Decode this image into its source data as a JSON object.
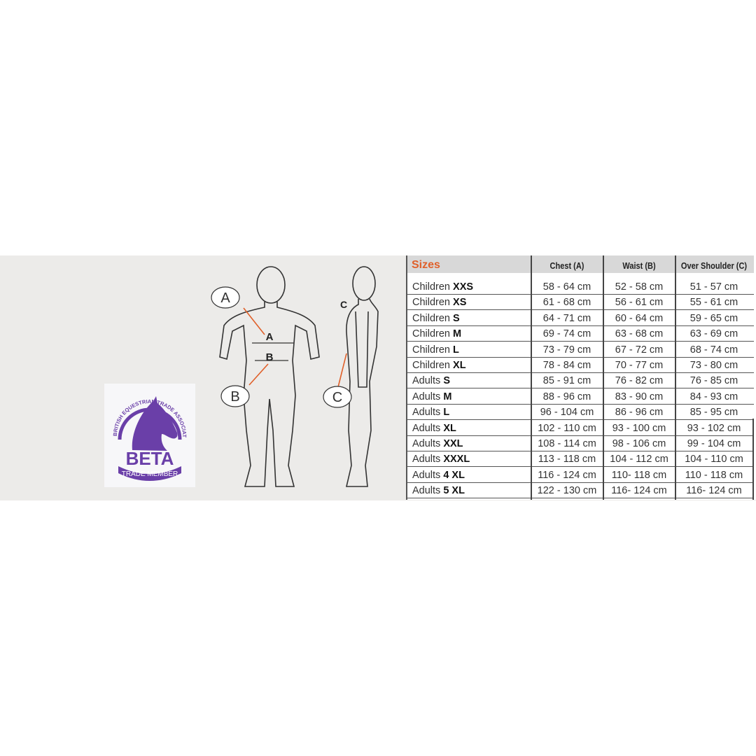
{
  "table": {
    "headers": {
      "sizes": "Sizes",
      "chest": "Chest (A)",
      "waist": "Waist (B)",
      "shoulder": "Over Shoulder (C)"
    },
    "rows": [
      {
        "group": "Children",
        "size": "XXS",
        "chest": "58 - 64 cm",
        "waist": "52 - 58 cm",
        "shoulder": "51 - 57 cm"
      },
      {
        "group": "Children",
        "size": "XS",
        "chest": "61 - 68 cm",
        "waist": "56 - 61 cm",
        "shoulder": "55 - 61 cm"
      },
      {
        "group": "Children",
        "size": "S",
        "chest": "64 - 71 cm",
        "waist": "60 - 64 cm",
        "shoulder": "59 - 65 cm"
      },
      {
        "group": "Children",
        "size": "M",
        "chest": "69 - 74 cm",
        "waist": "63 - 68 cm",
        "shoulder": "63 - 69 cm"
      },
      {
        "group": "Children",
        "size": "L",
        "chest": "73 - 79 cm",
        "waist": "67 - 72 cm",
        "shoulder": "68 - 74 cm"
      },
      {
        "group": "Children",
        "size": "XL",
        "chest": "78 - 84 cm",
        "waist": "70 - 77 cm",
        "shoulder": "73 - 80 cm"
      },
      {
        "group": "Adults",
        "size": "S",
        "chest": "85 - 91 cm",
        "waist": "76 - 82 cm",
        "shoulder": "76 - 85 cm"
      },
      {
        "group": "Adults",
        "size": "M",
        "chest": "88 - 96 cm",
        "waist": "83 - 90 cm",
        "shoulder": "84 - 93 cm"
      },
      {
        "group": "Adults",
        "size": "L",
        "chest": "96 - 104 cm",
        "waist": "86 - 96 cm",
        "shoulder": "85 - 95 cm"
      },
      {
        "group": "Adults",
        "size": "XL",
        "chest": "102 - 110 cm",
        "waist": "93 - 100 cm",
        "shoulder": "93 - 102 cm"
      },
      {
        "group": "Adults",
        "size": "XXL",
        "chest": "108 - 114 cm",
        "waist": "98 - 106 cm",
        "shoulder": "99 - 104 cm"
      },
      {
        "group": "Adults",
        "size": "XXXL",
        "chest": "113 - 118 cm",
        "waist": "104 - 112 cm",
        "shoulder": "104 - 110 cm"
      },
      {
        "group": "Adults",
        "size": "4 XL",
        "chest": "116 - 124 cm",
        "waist": "110- 118 cm",
        "shoulder": "110 - 118 cm"
      },
      {
        "group": "Adults",
        "size": "5 XL",
        "chest": "122 - 130 cm",
        "waist": "116- 124 cm",
        "shoulder": "116- 124 cm"
      }
    ]
  },
  "diagram": {
    "labels": {
      "a": "A",
      "b": "B",
      "c": "C"
    },
    "line_color": "#e0602a"
  },
  "logo": {
    "ring_text": "BRITISH EQUESTRIAN TRADE ASSOCIATION",
    "name": "BETA",
    "badge": "TRADE MEMBER",
    "color": "#6a3fa8"
  },
  "colors": {
    "sizes_header": "#e0602a",
    "header_bg": "#d8d8d8",
    "banner_bg": "#ecebe9"
  }
}
